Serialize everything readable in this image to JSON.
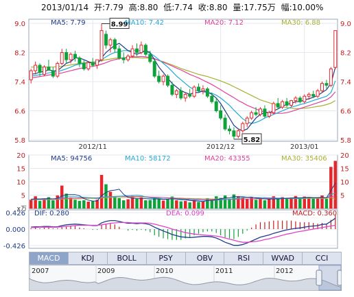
{
  "header": {
    "date": "2013/01/14",
    "open": "开:7.79",
    "high": "高:8.80",
    "low": "低:7.74",
    "close": "收:8.80",
    "volume": "量:17.75万",
    "change": "幅:10.00%"
  },
  "colors": {
    "up": "#e5262a",
    "down": "#10a23a",
    "ma5": "#1e3a8a",
    "ma10": "#22a8d8",
    "ma20": "#e0409a",
    "ma30": "#a8b030",
    "dif": "#1e3a8a",
    "dea": "#e040c8",
    "macd": "#c22020"
  },
  "price_panel": {
    "legend": [
      "MA5: 7.79",
      "MA10: 7.42",
      "MA20: 7.12",
      "MA30: 6.88"
    ],
    "y_ticks": [
      "9.0",
      "8.2",
      "7.4",
      "6.6",
      "5.8"
    ],
    "x_ticks": [
      "2012/11",
      "2012/12",
      "2013/01"
    ],
    "high_label": "8.99",
    "low_label": "5.82"
  },
  "volume_panel": {
    "legend": [
      "MA5: 94756",
      "MA10: 58172",
      "MA20: 43355",
      "MA30: 35406"
    ],
    "y_ticks": [
      "20",
      "15",
      "10",
      "5",
      "x万"
    ]
  },
  "macd_panel": {
    "legend": [
      "DIF: 0.280",
      "DEA: 0.099",
      "MACD: 0.360"
    ],
    "y_ticks": [
      "0.426",
      "0.000",
      "-0.426"
    ]
  },
  "tabs": [
    "MACD",
    "KDJ",
    "BOLL",
    "PSY",
    "OBV",
    "RSI",
    "WVAD",
    "CCI"
  ],
  "navigator": {
    "years": [
      "2007",
      "2009",
      "2010",
      "2011",
      "2012"
    ]
  },
  "chart_data": {
    "type": "candlestick",
    "title": "",
    "ylim": [
      5.8,
      9.0
    ],
    "x_ticks": [
      "2012/11",
      "2012/12",
      "2013/01"
    ],
    "candles": [
      [
        7.45,
        7.75,
        7.35,
        7.7
      ],
      [
        7.7,
        7.95,
        7.6,
        7.85
      ],
      [
        7.85,
        7.9,
        7.55,
        7.65
      ],
      [
        7.6,
        7.85,
        7.55,
        7.8
      ],
      [
        7.8,
        8.0,
        7.7,
        7.72
      ],
      [
        7.7,
        7.8,
        7.5,
        7.55
      ],
      [
        7.55,
        7.95,
        7.5,
        7.9
      ],
      [
        7.9,
        8.3,
        7.85,
        8.2
      ],
      [
        8.2,
        8.3,
        7.9,
        8.0
      ],
      [
        8.0,
        8.2,
        7.9,
        8.15
      ],
      [
        8.15,
        8.25,
        7.95,
        8.05
      ],
      [
        8.05,
        8.1,
        7.8,
        7.9
      ],
      [
        7.9,
        8.0,
        7.7,
        7.75
      ],
      [
        7.75,
        7.95,
        7.7,
        7.92
      ],
      [
        7.92,
        8.05,
        7.8,
        7.85
      ],
      [
        7.85,
        8.0,
        7.75,
        8.0
      ],
      [
        8.0,
        8.99,
        7.95,
        8.8
      ],
      [
        8.7,
        8.8,
        8.3,
        8.4
      ],
      [
        8.4,
        8.6,
        8.2,
        8.55
      ],
      [
        8.55,
        8.6,
        8.2,
        8.3
      ],
      [
        8.3,
        8.4,
        8.0,
        8.05
      ],
      [
        8.05,
        8.2,
        7.9,
        8.0
      ],
      [
        8.0,
        8.15,
        7.95,
        8.1
      ],
      [
        8.1,
        8.4,
        8.05,
        8.3
      ],
      [
        8.3,
        8.45,
        8.1,
        8.2
      ],
      [
        8.2,
        8.5,
        8.15,
        8.4
      ],
      [
        8.4,
        8.45,
        8.1,
        8.15
      ],
      [
        8.15,
        8.25,
        7.9,
        7.95
      ],
      [
        7.95,
        8.0,
        7.5,
        7.55
      ],
      [
        7.55,
        7.7,
        7.35,
        7.4
      ],
      [
        7.4,
        7.6,
        7.3,
        7.55
      ],
      [
        7.55,
        7.6,
        7.25,
        7.3
      ],
      [
        7.3,
        7.4,
        7.0,
        7.05
      ],
      [
        7.05,
        7.2,
        6.95,
        7.15
      ],
      [
        7.15,
        7.25,
        6.9,
        6.95
      ],
      [
        6.95,
        7.1,
        6.85,
        7.05
      ],
      [
        7.05,
        7.2,
        6.95,
        7.0
      ],
      [
        7.0,
        7.3,
        6.95,
        7.25
      ],
      [
        7.25,
        7.35,
        7.1,
        7.15
      ],
      [
        7.15,
        7.3,
        7.05,
        7.2
      ],
      [
        7.2,
        7.25,
        6.95,
        7.0
      ],
      [
        7.0,
        7.1,
        6.8,
        6.85
      ],
      [
        6.85,
        6.95,
        6.55,
        6.6
      ],
      [
        6.6,
        6.75,
        6.35,
        6.4
      ],
      [
        6.4,
        6.5,
        6.05,
        6.1
      ],
      [
        6.1,
        6.2,
        5.95,
        6.05
      ],
      [
        6.05,
        6.15,
        5.82,
        5.9
      ],
      [
        5.9,
        6.1,
        5.85,
        6.05
      ],
      [
        6.05,
        6.3,
        6.0,
        6.25
      ],
      [
        6.25,
        6.45,
        6.15,
        6.4
      ],
      [
        6.4,
        6.6,
        6.35,
        6.55
      ],
      [
        6.55,
        6.7,
        6.45,
        6.5
      ],
      [
        6.5,
        6.7,
        6.45,
        6.65
      ],
      [
        6.65,
        6.75,
        6.4,
        6.45
      ],
      [
        6.45,
        6.6,
        6.4,
        6.55
      ],
      [
        6.55,
        6.85,
        6.5,
        6.8
      ],
      [
        6.8,
        6.95,
        6.65,
        6.7
      ],
      [
        6.7,
        6.9,
        6.65,
        6.85
      ],
      [
        6.85,
        6.95,
        6.7,
        6.75
      ],
      [
        6.75,
        6.9,
        6.7,
        6.88
      ],
      [
        6.88,
        7.0,
        6.8,
        6.95
      ],
      [
        6.95,
        7.0,
        6.8,
        6.85
      ],
      [
        6.85,
        7.05,
        6.8,
        7.0
      ],
      [
        7.0,
        7.1,
        6.9,
        7.05
      ],
      [
        7.05,
        7.15,
        6.95,
        7.0
      ],
      [
        7.0,
        7.2,
        6.95,
        7.15
      ],
      [
        7.15,
        7.4,
        7.1,
        7.35
      ],
      [
        7.35,
        7.45,
        7.2,
        7.3
      ],
      [
        7.3,
        7.8,
        7.25,
        7.75
      ],
      [
        7.79,
        8.8,
        7.74,
        8.8
      ]
    ],
    "ma_series": [
      {
        "name": "MA5",
        "values": [
          7.6,
          7.62,
          7.66,
          7.68,
          7.72,
          7.7,
          7.7,
          7.8,
          7.9,
          7.95,
          8.05,
          8.05,
          8.0,
          7.95,
          7.9,
          7.88,
          8.05,
          8.2,
          8.3,
          8.4,
          8.45,
          8.35,
          8.25,
          8.2,
          8.15,
          8.2,
          8.25,
          8.2,
          8.0,
          7.8,
          7.65,
          7.5,
          7.35,
          7.25,
          7.15,
          7.1,
          7.05,
          7.1,
          7.1,
          7.15,
          7.12,
          7.05,
          6.95,
          6.8,
          6.6,
          6.4,
          6.2,
          6.1,
          6.05,
          6.1,
          6.25,
          6.4,
          6.5,
          6.55,
          6.55,
          6.6,
          6.65,
          6.72,
          6.78,
          6.8,
          6.85,
          6.85,
          6.9,
          6.93,
          6.97,
          7.02,
          7.1,
          7.18,
          7.35,
          7.79
        ]
      },
      {
        "name": "MA10",
        "values": [
          7.55,
          7.57,
          7.59,
          7.61,
          7.64,
          7.66,
          7.67,
          7.71,
          7.75,
          7.8,
          7.85,
          7.88,
          7.9,
          7.92,
          7.92,
          7.93,
          8.0,
          8.08,
          8.15,
          8.2,
          8.22,
          8.25,
          8.25,
          8.25,
          8.25,
          8.25,
          8.22,
          8.18,
          8.1,
          8.0,
          7.9,
          7.8,
          7.68,
          7.55,
          7.45,
          7.35,
          7.25,
          7.18,
          7.14,
          7.12,
          7.1,
          7.08,
          7.03,
          6.95,
          6.85,
          6.75,
          6.62,
          6.5,
          6.38,
          6.3,
          6.25,
          6.28,
          6.33,
          6.4,
          6.45,
          6.5,
          6.55,
          6.6,
          6.65,
          6.7,
          6.73,
          6.77,
          6.8,
          6.84,
          6.88,
          6.92,
          6.96,
          7.0,
          7.1,
          7.42
        ]
      },
      {
        "name": "MA20",
        "values": [
          7.5,
          7.52,
          7.54,
          7.56,
          7.58,
          7.6,
          7.62,
          7.64,
          7.67,
          7.7,
          7.73,
          7.76,
          7.78,
          7.8,
          7.82,
          7.84,
          7.88,
          7.92,
          7.97,
          8.0,
          8.03,
          8.05,
          8.07,
          8.08,
          8.08,
          8.09,
          8.08,
          8.06,
          8.03,
          7.98,
          7.93,
          7.88,
          7.83,
          7.77,
          7.72,
          7.66,
          7.6,
          7.55,
          7.5,
          7.44,
          7.38,
          7.32,
          7.25,
          7.18,
          7.1,
          7.03,
          6.96,
          6.88,
          6.82,
          6.75,
          6.7,
          6.65,
          6.6,
          6.57,
          6.55,
          6.53,
          6.53,
          6.53,
          6.55,
          6.58,
          6.62,
          6.66,
          6.7,
          6.74,
          6.78,
          6.82,
          6.86,
          6.9,
          6.98,
          7.12
        ]
      },
      {
        "name": "MA30",
        "values": [
          7.8,
          7.8,
          7.8,
          7.8,
          7.8,
          7.8,
          7.81,
          7.82,
          7.84,
          7.86,
          7.88,
          7.9,
          7.92,
          7.93,
          7.94,
          7.95,
          7.97,
          8.0,
          8.02,
          8.04,
          8.05,
          8.05,
          8.06,
          8.06,
          8.06,
          8.05,
          8.05,
          8.04,
          8.02,
          7.98,
          7.95,
          7.9,
          7.86,
          7.81,
          7.76,
          7.72,
          7.68,
          7.64,
          7.6,
          7.57,
          7.54,
          7.5,
          7.46,
          7.42,
          7.37,
          7.32,
          7.26,
          7.2,
          7.14,
          7.08,
          7.02,
          6.96,
          6.9,
          6.86,
          6.82,
          6.78,
          6.74,
          6.71,
          6.69,
          6.67,
          6.66,
          6.66,
          6.67,
          6.68,
          6.7,
          6.72,
          6.74,
          6.77,
          6.81,
          6.88
        ]
      }
    ],
    "volume": [
      3.2,
      4.5,
      2.8,
      3.6,
      4.2,
      3.0,
      4.8,
      8.5,
      5.5,
      4.0,
      3.2,
      2.8,
      3.0,
      2.5,
      2.7,
      3.2,
      12.5,
      9.0,
      6.2,
      4.5,
      3.8,
      3.0,
      3.4,
      4.6,
      3.5,
      4.0,
      3.0,
      3.1,
      4.2,
      3.6,
      2.9,
      3.5,
      4.4,
      3.0,
      2.6,
      2.8,
      2.2,
      3.0,
      2.4,
      2.6,
      3.8,
      3.2,
      4.5,
      3.9,
      4.8,
      3.6,
      5.2,
      4.5,
      4.0,
      3.6,
      4.2,
      3.2,
      3.8,
      3.0,
      3.4,
      4.5,
      3.6,
      4.2,
      3.5,
      4.0,
      4.6,
      3.8,
      4.4,
      4.2,
      3.6,
      4.0,
      4.8,
      3.5,
      15.5,
      17.75
    ],
    "volume_ma": [
      {
        "name": "MA5",
        "values": [
          3.5,
          3.6,
          3.6,
          3.7,
          3.7,
          3.6,
          3.8,
          4.7,
          5.2,
          5.2,
          5.2,
          4.8,
          3.7,
          3.1,
          2.8,
          2.8,
          4.8,
          6.0,
          6.7,
          6.9,
          7.2,
          5.3,
          4.2,
          3.9,
          3.7,
          3.7,
          3.7,
          3.6,
          3.6,
          3.6,
          3.4,
          3.5,
          3.7,
          3.5,
          3.3,
          3.3,
          3.0,
          2.9,
          2.8,
          2.6,
          3.0,
          3.0,
          3.3,
          3.6,
          4.0,
          4.0,
          4.4,
          4.4,
          4.4,
          4.2,
          4.3,
          3.9,
          3.8,
          3.6,
          3.5,
          3.6,
          3.6,
          3.7,
          3.8,
          3.9,
          4.0,
          4.0,
          4.1,
          4.2,
          4.1,
          4.1,
          4.2,
          4.0,
          6.7,
          9.5
        ]
      },
      {
        "name": "MA10",
        "values": [
          3.4,
          3.5,
          3.5,
          3.5,
          3.6,
          3.6,
          3.6,
          4.1,
          4.4,
          4.4,
          4.4,
          4.3,
          4.2,
          4.1,
          4.0,
          3.8,
          4.3,
          4.4,
          4.4,
          4.5,
          4.6,
          4.7,
          4.8,
          4.9,
          5.0,
          4.8,
          4.3,
          4.0,
          3.9,
          3.8,
          3.6,
          3.6,
          3.7,
          3.6,
          3.5,
          3.4,
          3.3,
          3.2,
          3.1,
          3.0,
          3.0,
          3.0,
          3.1,
          3.2,
          3.4,
          3.5,
          3.7,
          3.9,
          4.1,
          4.1,
          4.1,
          4.1,
          4.1,
          4.1,
          4.0,
          4.0,
          3.9,
          3.9,
          3.8,
          3.8,
          3.8,
          3.8,
          3.9,
          4.0,
          4.0,
          4.0,
          4.1,
          4.0,
          5.2,
          5.8
        ]
      },
      {
        "name": "MA20",
        "values": [
          3.4,
          3.4,
          3.4,
          3.4,
          3.5,
          3.5,
          3.5,
          3.7,
          3.8,
          3.9,
          3.9,
          3.9,
          4.0,
          4.0,
          4.0,
          4.0,
          4.2,
          4.3,
          4.4,
          4.4,
          4.5,
          4.5,
          4.5,
          4.5,
          4.5,
          4.5,
          4.4,
          4.3,
          4.2,
          4.2,
          4.1,
          4.0,
          3.9,
          3.8,
          3.7,
          3.6,
          3.6,
          3.5,
          3.5,
          3.4,
          3.4,
          3.4,
          3.4,
          3.4,
          3.4,
          3.4,
          3.5,
          3.5,
          3.5,
          3.6,
          3.6,
          3.7,
          3.7,
          3.8,
          3.8,
          3.8,
          3.8,
          3.8,
          3.9,
          3.9,
          3.9,
          3.9,
          3.9,
          4.0,
          4.0,
          4.0,
          4.0,
          4.0,
          4.5,
          4.3
        ]
      },
      {
        "name": "MA30",
        "values": [
          3.3,
          3.3,
          3.3,
          3.3,
          3.3,
          3.4,
          3.4,
          3.5,
          3.6,
          3.6,
          3.6,
          3.6,
          3.7,
          3.7,
          3.7,
          3.7,
          3.9,
          4.0,
          4.1,
          4.1,
          4.1,
          4.1,
          4.2,
          4.2,
          4.2,
          4.2,
          4.2,
          4.2,
          4.2,
          4.1,
          4.1,
          4.0,
          4.0,
          3.9,
          3.9,
          3.8,
          3.8,
          3.7,
          3.7,
          3.6,
          3.6,
          3.6,
          3.6,
          3.6,
          3.6,
          3.6,
          3.6,
          3.6,
          3.6,
          3.6,
          3.6,
          3.6,
          3.6,
          3.6,
          3.6,
          3.6,
          3.6,
          3.7,
          3.7,
          3.7,
          3.7,
          3.7,
          3.7,
          3.8,
          3.8,
          3.8,
          3.8,
          3.8,
          4.1,
          3.5
        ]
      }
    ],
    "macd": {
      "dif": [
        0.05,
        0.06,
        0.06,
        0.07,
        0.07,
        0.06,
        0.06,
        0.09,
        0.11,
        0.12,
        0.13,
        0.12,
        0.11,
        0.1,
        0.09,
        0.09,
        0.16,
        0.2,
        0.22,
        0.22,
        0.2,
        0.17,
        0.15,
        0.15,
        0.14,
        0.15,
        0.14,
        0.11,
        0.05,
        0.0,
        -0.05,
        -0.09,
        -0.14,
        -0.17,
        -0.2,
        -0.21,
        -0.22,
        -0.21,
        -0.2,
        -0.19,
        -0.19,
        -0.2,
        -0.23,
        -0.28,
        -0.34,
        -0.38,
        -0.42,
        -0.42,
        -0.4,
        -0.36,
        -0.31,
        -0.26,
        -0.21,
        -0.18,
        -0.15,
        -0.11,
        -0.08,
        -0.05,
        -0.02,
        0.0,
        0.02,
        0.03,
        0.05,
        0.07,
        0.08,
        0.09,
        0.12,
        0.13,
        0.2,
        0.28
      ],
      "dea": [
        0.04,
        0.04,
        0.05,
        0.05,
        0.05,
        0.05,
        0.05,
        0.06,
        0.07,
        0.08,
        0.09,
        0.1,
        0.1,
        0.1,
        0.1,
        0.1,
        0.11,
        0.13,
        0.15,
        0.16,
        0.17,
        0.17,
        0.17,
        0.16,
        0.16,
        0.16,
        0.16,
        0.15,
        0.13,
        0.1,
        0.07,
        0.04,
        0.0,
        -0.03,
        -0.06,
        -0.09,
        -0.11,
        -0.13,
        -0.14,
        -0.15,
        -0.16,
        -0.17,
        -0.18,
        -0.2,
        -0.23,
        -0.26,
        -0.29,
        -0.32,
        -0.34,
        -0.34,
        -0.33,
        -0.32,
        -0.3,
        -0.27,
        -0.25,
        -0.22,
        -0.19,
        -0.16,
        -0.13,
        -0.11,
        -0.08,
        -0.06,
        -0.04,
        -0.02,
        0.0,
        0.02,
        0.04,
        0.06,
        0.08,
        0.1
      ],
      "macd": [
        0.02,
        0.04,
        0.02,
        0.04,
        0.04,
        0.02,
        0.02,
        0.06,
        0.08,
        0.08,
        0.08,
        0.04,
        0.02,
        0.0,
        -0.02,
        -0.02,
        0.1,
        0.14,
        0.14,
        0.12,
        0.06,
        0.0,
        -0.04,
        -0.02,
        -0.04,
        -0.02,
        -0.04,
        -0.08,
        -0.16,
        -0.2,
        -0.24,
        -0.26,
        -0.28,
        -0.28,
        -0.28,
        -0.24,
        -0.22,
        -0.16,
        -0.12,
        -0.08,
        -0.06,
        -0.06,
        -0.1,
        -0.16,
        -0.22,
        -0.24,
        -0.26,
        -0.2,
        -0.12,
        -0.04,
        0.04,
        0.12,
        0.18,
        0.18,
        0.2,
        0.22,
        0.22,
        0.22,
        0.22,
        0.22,
        0.2,
        0.18,
        0.18,
        0.18,
        0.16,
        0.14,
        0.16,
        0.14,
        0.24,
        0.36
      ]
    }
  }
}
